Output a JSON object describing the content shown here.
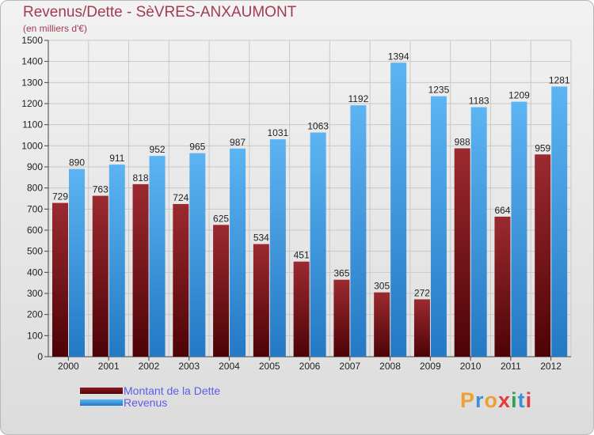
{
  "title": "Revenus/Dette - SèVRES-ANXAUMONT",
  "subtitle": "(en milliers d'€)",
  "colors": {
    "dette": "#8b1c22",
    "revenus": "#3c9ee6",
    "title": "#a33b52",
    "legend_text": "#5b5ee8"
  },
  "chart_data": {
    "type": "bar",
    "categories": [
      "2000",
      "2001",
      "2002",
      "2003",
      "2004",
      "2005",
      "2006",
      "2007",
      "2008",
      "2009",
      "2010",
      "2011",
      "2012"
    ],
    "series": [
      {
        "name": "Montant de la Dette",
        "values": [
          729,
          763,
          818,
          724,
          625,
          534,
          451,
          365,
          305,
          272,
          988,
          664,
          959
        ]
      },
      {
        "name": "Revenus",
        "values": [
          890,
          911,
          952,
          965,
          987,
          1031,
          1063,
          1192,
          1394,
          1235,
          1183,
          1209,
          1281
        ]
      }
    ],
    "ylim": [
      0,
      1500
    ],
    "yticks": [
      0,
      100,
      200,
      300,
      400,
      500,
      600,
      700,
      800,
      900,
      1000,
      1100,
      1200,
      1300,
      1400,
      1500
    ],
    "grid": true,
    "legend_position": "bottom-left"
  },
  "legend": {
    "dette_label": "Montant de la Dette",
    "revenus_label": "Revenus"
  },
  "logo": {
    "text": "Proxiti",
    "letter_colors": [
      "#f0a032",
      "#3f8fd6",
      "#f0a032",
      "#e23c3c",
      "#2fa24a",
      "#3f8fd6",
      "#e23c3c"
    ]
  }
}
